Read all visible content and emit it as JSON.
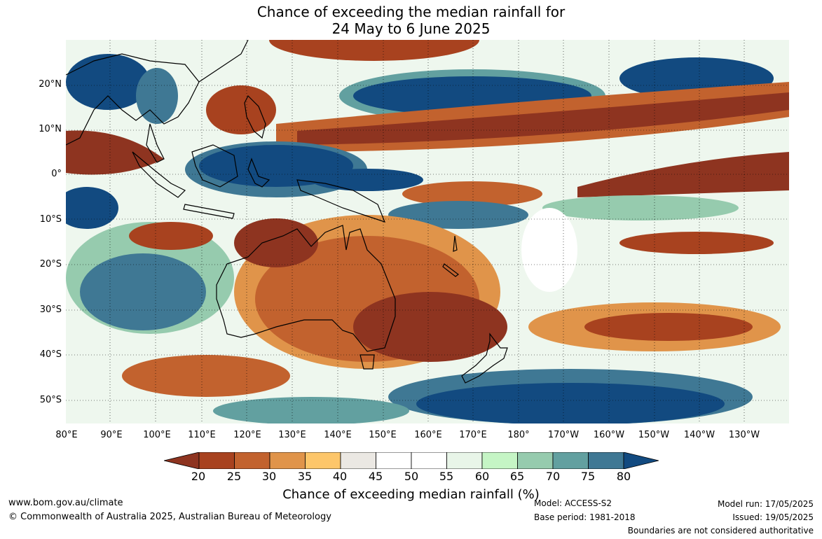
{
  "title": {
    "line1": "Chance of exceeding the median rainfall for",
    "line2": "24 May to 6 June 2025"
  },
  "map": {
    "lat_labels": [
      "20°N",
      "10°N",
      "0°",
      "10°S",
      "20°S",
      "30°S",
      "40°S",
      "50°S"
    ],
    "lon_labels": [
      "80°E",
      "90°E",
      "100°E",
      "110°E",
      "120°E",
      "130°E",
      "140°E",
      "150°E",
      "160°E",
      "170°E",
      "180°",
      "170°W",
      "160°W",
      "150°W",
      "140°W",
      "130°W"
    ]
  },
  "colorbar": {
    "label": "Chance of exceeding median rainfall (%)",
    "ticks": [
      "20",
      "25",
      "30",
      "35",
      "40",
      "45",
      "50",
      "55",
      "60",
      "65",
      "70",
      "75",
      "80"
    ],
    "colors": [
      "#8e3420",
      "#a8421f",
      "#c2622e",
      "#e0944a",
      "#fdc66a",
      "#ebe8e3",
      "#ffffff",
      "#ffffff",
      "#e8f5e8",
      "#c5f5c5",
      "#96cbae",
      "#62a0a0",
      "#3f7894",
      "#124a80"
    ]
  },
  "footer": {
    "website": "www.bom.gov.au/climate",
    "copyright": "© Commonwealth of Australia 2025, Australian Bureau of Meteorology",
    "model": "Model: ACCESS-S2",
    "base_period": "Base period: 1981-2018",
    "model_run": "Model run: 17/05/2025",
    "issued": "Issued: 19/05/2025",
    "disclaimer": "Boundaries are not considered authoritative"
  }
}
